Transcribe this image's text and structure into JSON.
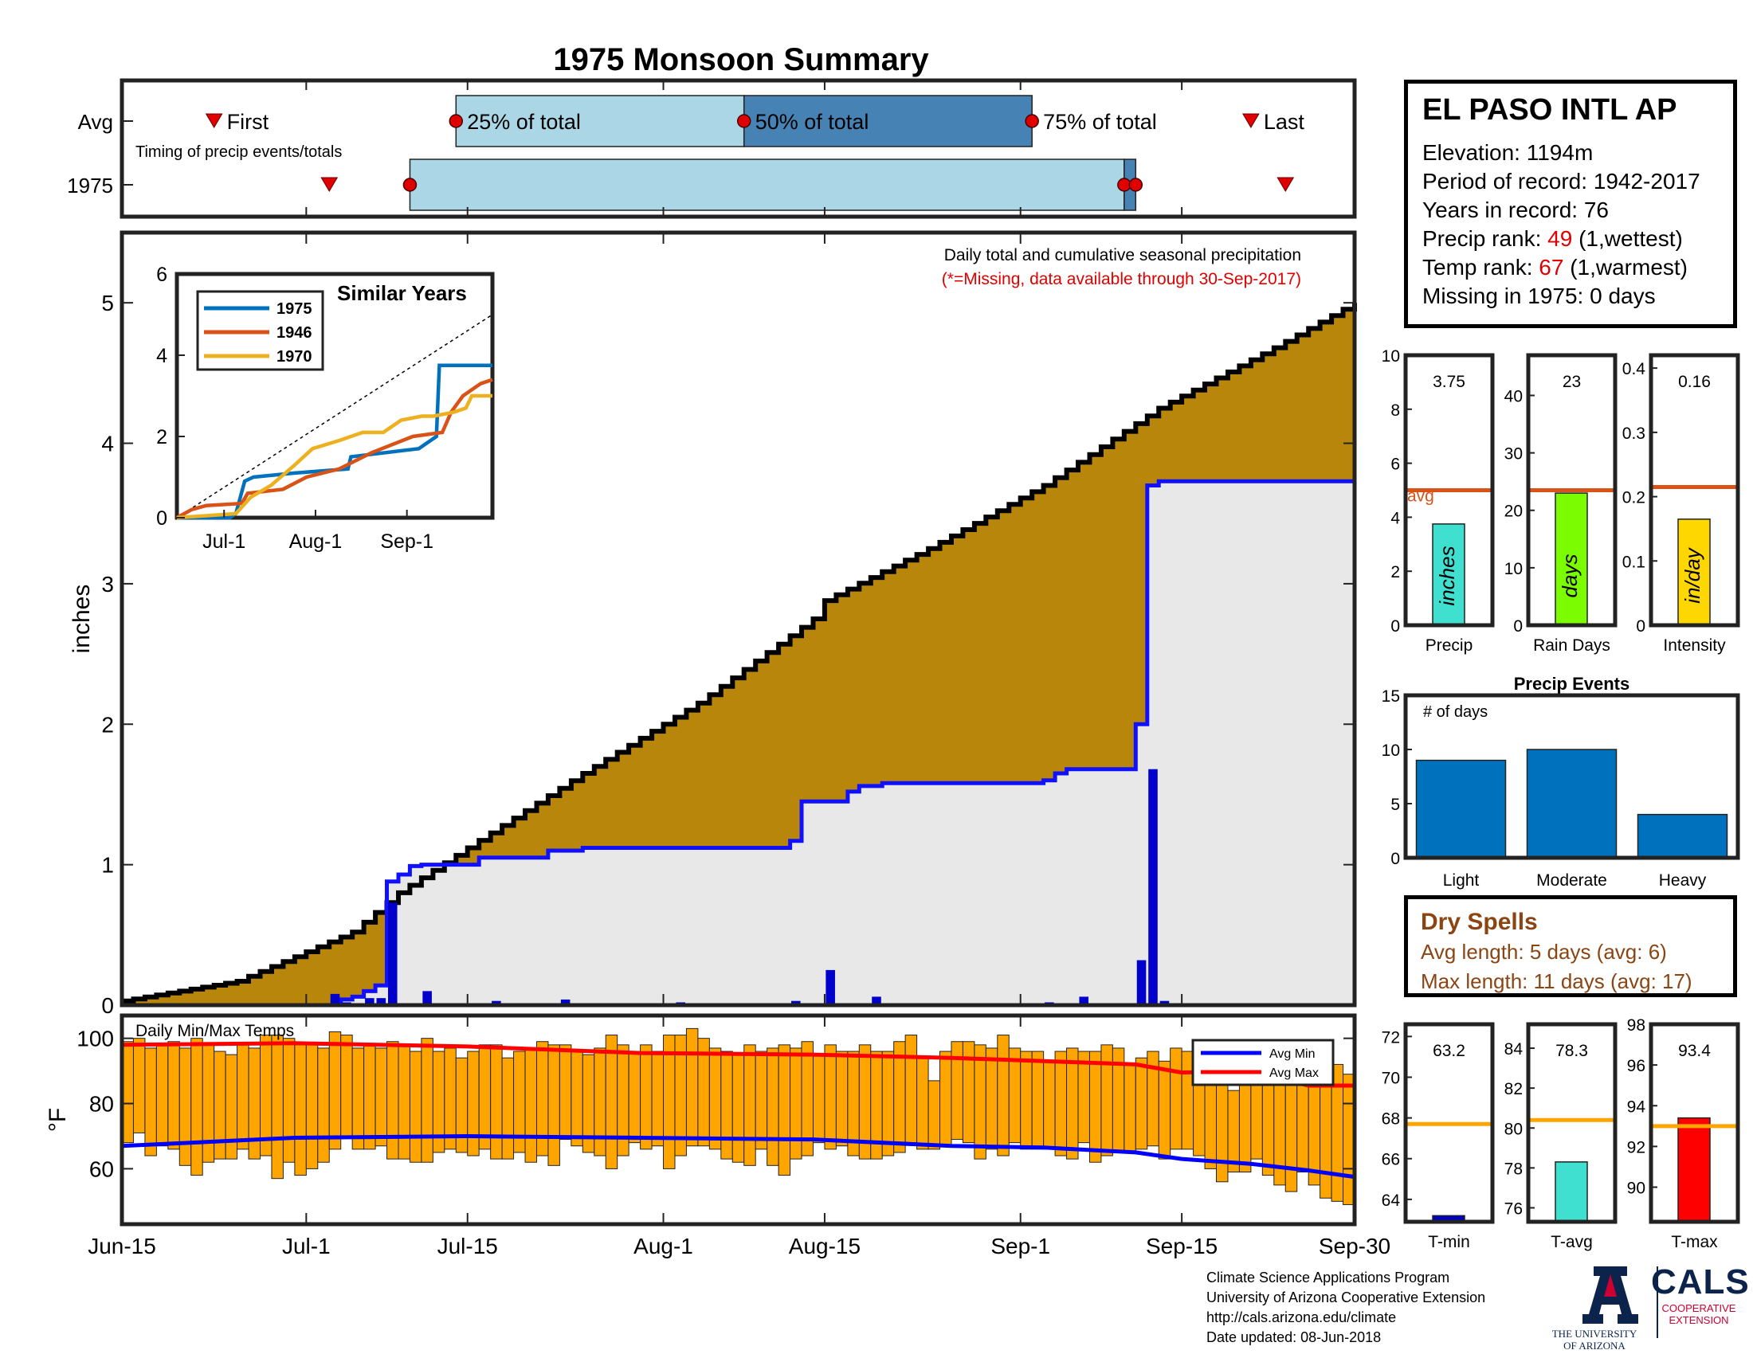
{
  "title": "1975 Monsoon Summary",
  "station": {
    "name": "EL PASO INTL AP",
    "elevation_label": "Elevation: 1194m",
    "period_label": "Period of record: 1942-2017",
    "years_label": "Years in record: 76",
    "precip_rank_prefix": "Precip rank: ",
    "precip_rank": "49",
    "precip_rank_suffix": " (1,wettest)",
    "temp_rank_prefix": "Temp rank: ",
    "temp_rank": "67",
    "temp_rank_suffix": " (1,warmest)",
    "missing_label": "Missing in 1975: 0 days"
  },
  "dry_spells": {
    "title": "Dry Spells",
    "avg_line": "Avg length: 5 days (avg: 6)",
    "max_line": "Max length: 11 days (avg: 17)"
  },
  "footer": {
    "line1": "Climate Science Applications Program",
    "line2": "University of Arizona Cooperative Extension",
    "line3": "http://cals.arizona.edu/climate",
    "line4": "Date updated: 08-Jun-2018",
    "ua_line1": "THE UNIVERSITY",
    "ua_line2": "OF ARIZONA",
    "cals_text": "CALS",
    "cals_sub1": "COOPERATIVE",
    "cals_sub2": "EXTENSION"
  },
  "colors": {
    "title_red": "#e00000",
    "cumulative_avg_fill": "#b8860b",
    "cumulative_year_fill": "#e8e8e8",
    "cumulative_year_line": "#1010ff",
    "daily_bar": "#0000cc",
    "temp_bar": "#ffa500",
    "avg_max": "#ff0000",
    "avg_min": "#0000ff",
    "timing_light": "#abd6e6",
    "timing_dark": "#4682b4",
    "series_1975": "#0072bd",
    "series_1946": "#d95319",
    "series_1970": "#edb120",
    "avg_ref_line": "#d95319",
    "temp_ref_line": "#ffa500",
    "precip_bar": "#40e0d0",
    "raindays_bar": "#7cfc00",
    "intensity_bar": "#ffd700",
    "events_bar": "#0072bd",
    "tmin_bar": "#0000cc",
    "tavg_bar": "#40e0d0",
    "tmax_bar": "#ff0000"
  },
  "chart_data": [
    {
      "id": "timing",
      "type": "bar",
      "rows": [
        "Avg",
        "1975"
      ],
      "legend": "Timing of precip events/totals",
      "labels": {
        "first": "First",
        "p25": "25% of total",
        "p50": "50% of total",
        "p75": "75% of total",
        "last": "Last"
      },
      "x_range": [
        "Jun-15",
        "Sep-30"
      ],
      "avg": {
        "first": "Jun-23",
        "p25": "Jul-14",
        "p50": "Aug-8",
        "p75": "Sep-2",
        "last": "Sep-21"
      },
      "year": {
        "first": "Jul-3",
        "p25": "Jul-10",
        "p50": "Sep-10",
        "p75": "Sep-11",
        "last": "Sep-24"
      }
    },
    {
      "id": "cumulative",
      "type": "area",
      "title": "Daily total and cumulative seasonal precipitation",
      "subtitle": "(*=Missing, data available through 30-Sep-2017)",
      "ylabel": "inches",
      "ylim": [
        0,
        5.5
      ],
      "yticks": [
        0,
        1,
        2,
        3,
        4,
        5
      ],
      "xticks": [
        "Jun-15",
        "Jul-1",
        "Jul-15",
        "Aug-1",
        "Aug-15",
        "Sep-1",
        "Sep-15",
        "Sep-30"
      ],
      "x_days": [
        0,
        16,
        30,
        47,
        61,
        78,
        92,
        107
      ],
      "avg_cumulative": [
        [
          0,
          0.03
        ],
        [
          10,
          0.17
        ],
        [
          20,
          0.52
        ],
        [
          24,
          0.8
        ],
        [
          30,
          1.12
        ],
        [
          40,
          1.65
        ],
        [
          50,
          2.15
        ],
        [
          60,
          2.75
        ],
        [
          61,
          2.88
        ],
        [
          70,
          3.25
        ],
        [
          80,
          3.7
        ],
        [
          90,
          4.25
        ],
        [
          100,
          4.68
        ],
        [
          107,
          5.0
        ]
      ],
      "year_cumulative": [
        [
          0,
          0.0
        ],
        [
          18,
          0.0
        ],
        [
          19,
          0.04
        ],
        [
          20,
          0.06
        ],
        [
          21,
          0.1
        ],
        [
          22,
          0.14
        ],
        [
          23,
          0.88
        ],
        [
          24,
          0.93
        ],
        [
          25,
          0.99
        ],
        [
          26,
          1.0
        ],
        [
          31,
          1.05
        ],
        [
          37,
          1.1
        ],
        [
          40,
          1.12
        ],
        [
          58,
          1.17
        ],
        [
          59,
          1.45
        ],
        [
          63,
          1.52
        ],
        [
          64,
          1.56
        ],
        [
          66,
          1.58
        ],
        [
          80,
          1.6
        ],
        [
          81,
          1.65
        ],
        [
          82,
          1.68
        ],
        [
          88,
          2.0
        ],
        [
          89,
          3.7
        ],
        [
          90,
          3.73
        ],
        [
          107,
          3.74
        ]
      ],
      "daily_bars": [
        [
          18,
          0.08
        ],
        [
          19,
          0.02
        ],
        [
          21,
          0.05
        ],
        [
          22,
          0.05
        ],
        [
          23,
          0.73
        ],
        [
          26,
          0.1
        ],
        [
          32,
          0.03
        ],
        [
          38,
          0.04
        ],
        [
          48,
          0.02
        ],
        [
          58,
          0.03
        ],
        [
          61,
          0.25
        ],
        [
          65,
          0.06
        ],
        [
          80,
          0.02
        ],
        [
          83,
          0.06
        ],
        [
          88,
          0.32
        ],
        [
          89,
          1.68
        ],
        [
          90,
          0.03
        ]
      ]
    },
    {
      "id": "similar_years",
      "type": "line",
      "title": "Similar Years",
      "ylim": [
        0,
        6
      ],
      "yticks": [
        0,
        2,
        4,
        6
      ],
      "xticks": [
        "Jul-1",
        "Aug-1",
        "Sep-1"
      ],
      "series": [
        {
          "name": "1975",
          "points": [
            [
              0,
              0
            ],
            [
              18,
              0
            ],
            [
              20,
              0.1
            ],
            [
              23,
              0.9
            ],
            [
              26,
              1.0
            ],
            [
              40,
              1.1
            ],
            [
              58,
              1.2
            ],
            [
              59,
              1.5
            ],
            [
              82,
              1.7
            ],
            [
              88,
              2.0
            ],
            [
              89,
              3.75
            ],
            [
              107,
              3.75
            ]
          ]
        },
        {
          "name": "1946",
          "points": [
            [
              0,
              0
            ],
            [
              5,
              0.2
            ],
            [
              10,
              0.3
            ],
            [
              22,
              0.35
            ],
            [
              24,
              0.6
            ],
            [
              36,
              0.7
            ],
            [
              44,
              1.0
            ],
            [
              55,
              1.2
            ],
            [
              66,
              1.6
            ],
            [
              80,
              2.0
            ],
            [
              90,
              2.1
            ],
            [
              93,
              2.6
            ],
            [
              97,
              3.0
            ],
            [
              103,
              3.3
            ],
            [
              107,
              3.4
            ]
          ]
        },
        {
          "name": "1970",
          "points": [
            [
              0,
              0
            ],
            [
              10,
              0.05
            ],
            [
              20,
              0.1
            ],
            [
              25,
              0.5
            ],
            [
              32,
              0.8
            ],
            [
              40,
              1.3
            ],
            [
              46,
              1.7
            ],
            [
              55,
              1.9
            ],
            [
              63,
              2.1
            ],
            [
              70,
              2.1
            ],
            [
              76,
              2.4
            ],
            [
              83,
              2.5
            ],
            [
              87,
              2.5
            ],
            [
              94,
              2.6
            ],
            [
              98,
              2.7
            ],
            [
              100,
              3.0
            ],
            [
              107,
              3.0
            ]
          ]
        }
      ],
      "avg_dashed": [
        [
          0,
          0
        ],
        [
          107,
          5.0
        ]
      ]
    },
    {
      "id": "temps",
      "type": "bar",
      "title": "Daily Min/Max Temps",
      "ylabel": "°F",
      "ylim": [
        43,
        107
      ],
      "yticks": [
        60,
        80,
        100
      ],
      "legend": [
        "Avg Min",
        "Avg Max"
      ],
      "avg_max": [
        [
          0,
          98
        ],
        [
          15,
          98.5
        ],
        [
          30,
          97.5
        ],
        [
          45,
          95.5
        ],
        [
          60,
          95
        ],
        [
          72,
          94
        ],
        [
          80,
          93
        ],
        [
          88,
          92
        ],
        [
          92,
          89.5
        ],
        [
          98,
          90
        ],
        [
          103,
          85.5
        ],
        [
          107,
          85.5
        ]
      ],
      "avg_min": [
        [
          0,
          67
        ],
        [
          15,
          69.5
        ],
        [
          30,
          70
        ],
        [
          45,
          69.5
        ],
        [
          60,
          69
        ],
        [
          72,
          67
        ],
        [
          80,
          66.5
        ],
        [
          88,
          65
        ],
        [
          92,
          63
        ],
        [
          98,
          61.5
        ],
        [
          103,
          59.5
        ],
        [
          107,
          57.5
        ]
      ],
      "daily": [
        [
          99,
          68
        ],
        [
          100,
          71
        ],
        [
          97,
          64
        ],
        [
          98,
          67
        ],
        [
          99,
          66
        ],
        [
          97,
          61
        ],
        [
          100,
          58
        ],
        [
          98,
          62
        ],
        [
          96,
          63
        ],
        [
          95,
          63
        ],
        [
          98,
          66
        ],
        [
          97,
          63
        ],
        [
          101,
          64
        ],
        [
          101,
          57
        ],
        [
          100,
          62
        ],
        [
          98,
          58
        ],
        [
          98,
          60
        ],
        [
          97,
          62
        ],
        [
          102,
          66
        ],
        [
          101,
          70
        ],
        [
          97,
          66
        ],
        [
          98,
          66
        ],
        [
          97,
          67
        ],
        [
          99,
          63
        ],
        [
          98,
          63
        ],
        [
          96,
          62
        ],
        [
          100,
          62
        ],
        [
          96,
          65
        ],
        [
          97,
          66
        ],
        [
          94,
          65
        ],
        [
          96,
          64
        ],
        [
          98,
          66
        ],
        [
          98,
          63
        ],
        [
          94,
          63
        ],
        [
          96,
          65
        ],
        [
          97,
          62
        ],
        [
          99,
          64
        ],
        [
          98,
          61
        ],
        [
          98,
          69
        ],
        [
          96,
          67
        ],
        [
          95,
          65
        ],
        [
          97,
          64
        ],
        [
          101,
          60
        ],
        [
          98,
          64
        ],
        [
          96,
          68
        ],
        [
          98,
          66
        ],
        [
          96,
          67
        ],
        [
          101,
          60
        ],
        [
          101,
          64
        ],
        [
          103,
          67
        ],
        [
          100,
          67
        ],
        [
          97,
          66
        ],
        [
          96,
          63
        ],
        [
          95,
          62
        ],
        [
          98,
          61
        ],
        [
          96,
          66
        ],
        [
          97,
          61
        ],
        [
          98,
          58
        ],
        [
          97,
          63
        ],
        [
          99,
          64
        ],
        [
          95,
          68
        ],
        [
          98,
          66
        ],
        [
          96,
          67
        ],
        [
          96,
          64
        ],
        [
          98,
          63
        ],
        [
          96,
          63
        ],
        [
          96,
          64
        ],
        [
          99,
          65
        ],
        [
          101,
          68
        ],
        [
          94,
          66
        ],
        [
          87,
          66
        ],
        [
          96,
          67
        ],
        [
          99,
          69
        ],
        [
          99,
          68
        ],
        [
          98,
          63
        ],
        [
          97,
          66
        ],
        [
          101,
          64
        ],
        [
          97,
          68
        ],
        [
          96,
          66
        ],
        [
          96,
          66
        ],
        [
          93,
          66
        ],
        [
          96,
          64
        ],
        [
          97,
          63
        ],
        [
          96,
          68
        ],
        [
          96,
          62
        ],
        [
          98,
          64
        ],
        [
          97,
          65
        ],
        [
          92,
          65
        ],
        [
          94,
          66
        ],
        [
          96,
          67
        ],
        [
          93,
          63
        ],
        [
          97,
          66
        ],
        [
          96,
          66
        ],
        [
          97,
          64
        ],
        [
          96,
          60
        ],
        [
          98,
          56
        ],
        [
          84,
          59
        ],
        [
          90,
          59
        ],
        [
          90,
          63
        ],
        [
          92,
          58
        ],
        [
          93,
          55
        ],
        [
          93,
          53
        ],
        [
          92,
          59
        ],
        [
          91,
          55
        ],
        [
          90,
          51
        ],
        [
          92,
          50
        ],
        [
          89,
          49
        ]
      ]
    },
    {
      "id": "precip_total",
      "type": "bar",
      "label": "inches",
      "xlabel": "Precip",
      "value": 3.75,
      "value_label": "3.75",
      "avg": 5.0,
      "avg_label": "avg",
      "ylim": [
        0,
        10
      ],
      "yticks": [
        0,
        2,
        4,
        6,
        8,
        10
      ]
    },
    {
      "id": "rain_days",
      "type": "bar",
      "label": "days",
      "xlabel": "Rain Days",
      "value": 23,
      "value_label": "23",
      "avg": 23.5,
      "ylim": [
        0,
        47
      ],
      "yticks": [
        0,
        10,
        20,
        30,
        40
      ]
    },
    {
      "id": "intensity",
      "type": "bar",
      "label": "in/day",
      "xlabel": "Intensity",
      "value": 0.165,
      "value_label": "0.16",
      "avg": 0.215,
      "ylim": [
        0,
        0.42
      ],
      "yticks": [
        0,
        0.1,
        0.2,
        0.3,
        0.4
      ],
      "ytick_labels": [
        "0",
        "0.1",
        "0.2",
        "0.3",
        "0.4"
      ]
    },
    {
      "id": "precip_events",
      "type": "bar",
      "title": "Precip Events",
      "annotation": "# of days",
      "categories": [
        "Light",
        "Moderate",
        "Heavy"
      ],
      "values": [
        9,
        10,
        4
      ],
      "ylim": [
        0,
        15
      ],
      "yticks": [
        0,
        5,
        10,
        15
      ]
    },
    {
      "id": "t_min",
      "type": "bar",
      "xlabel": "T-min",
      "value": 63.2,
      "value_label": "63.2",
      "avg": 67.7,
      "ylim": [
        62.9,
        72.6
      ],
      "yticks": [
        64,
        66,
        68,
        70,
        72
      ]
    },
    {
      "id": "t_avg",
      "type": "bar",
      "xlabel": "T-avg",
      "value": 78.3,
      "value_label": "78.3",
      "avg": 80.4,
      "ylim": [
        75.3,
        85.2
      ],
      "yticks": [
        76,
        78,
        80,
        82,
        84
      ]
    },
    {
      "id": "t_max",
      "type": "bar",
      "xlabel": "T-max",
      "value": 93.4,
      "value_label": "93.4",
      "avg": 93.0,
      "ylim": [
        88.3,
        98
      ],
      "yticks": [
        90,
        92,
        94,
        96,
        98
      ]
    }
  ]
}
